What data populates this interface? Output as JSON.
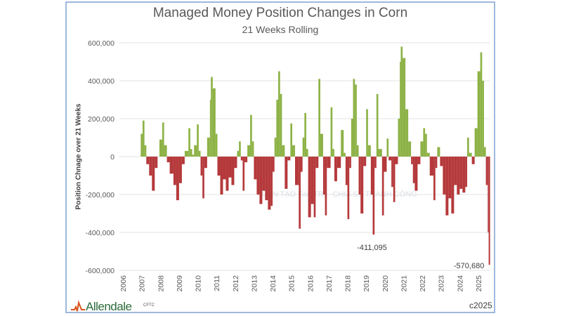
{
  "chart_data": {
    "type": "bar",
    "title": "Managed Money Position Changes in Corn",
    "subtitle": "21 Weeks Rolling",
    "xlabel": "",
    "ylabel": "Position Chnage over 21 Weeks",
    "ylim": [
      -600000,
      600000
    ],
    "yticks": [
      "600,000",
      "400,000",
      "200,000",
      "0",
      "-200,000",
      "-400,000",
      "-600,000"
    ],
    "ytick_values": [
      600000,
      400000,
      200000,
      0,
      -200000,
      -400000,
      -600000
    ],
    "xlim": [
      2006,
      2025.7
    ],
    "xticks": [
      "2006",
      "2007",
      "2008",
      "2009",
      "2010",
      "2011",
      "2012",
      "2013",
      "2014",
      "2015",
      "2016",
      "2017",
      "2018",
      "2019",
      "2020",
      "2021",
      "2022",
      "2023",
      "2024",
      "2025"
    ],
    "grid": "horizontal",
    "colors": {
      "positive": "#8db246",
      "negative": "#b5393b"
    },
    "annotations": [
      {
        "text": "-411,095",
        "x": 2019.35,
        "y": -411095
      },
      {
        "text": "-570,680",
        "x": 2025.55,
        "y": -570680
      }
    ],
    "x": [
      2006.0,
      2006.9,
      2006.95,
      2007.05,
      2007.15,
      2007.25,
      2007.4,
      2007.55,
      2007.7,
      2007.85,
      2007.95,
      2008.1,
      2008.2,
      2008.35,
      2008.5,
      2008.7,
      2008.85,
      2009.0,
      2009.15,
      2009.3,
      2009.5,
      2009.6,
      2009.7,
      2009.8,
      2009.95,
      2010.05,
      2010.15,
      2010.25,
      2010.35,
      2010.5,
      2010.65,
      2010.7,
      2010.8,
      2010.95,
      2011.05,
      2011.2,
      2011.35,
      2011.5,
      2011.65,
      2011.8,
      2011.95,
      2012.1,
      2012.2,
      2012.3,
      2012.4,
      2012.5,
      2012.65,
      2012.8,
      2012.9,
      2013.0,
      2013.15,
      2013.3,
      2013.45,
      2013.6,
      2013.75,
      2013.9,
      2014.0,
      2014.1,
      2014.2,
      2014.3,
      2014.4,
      2014.5,
      2014.65,
      2014.8,
      2014.95,
      2015.05,
      2015.2,
      2015.4,
      2015.5,
      2015.6,
      2015.7,
      2015.8,
      2015.9,
      2016.05,
      2016.2,
      2016.3,
      2016.45,
      2016.55,
      2016.7,
      2016.8,
      2016.9,
      2017.1,
      2017.2,
      2017.3,
      2017.45,
      2017.65,
      2017.8,
      2017.9,
      2018.0,
      2018.1,
      2018.2,
      2018.3,
      2018.4,
      2018.5,
      2018.6,
      2018.7,
      2018.85,
      2019.0,
      2019.1,
      2019.25,
      2019.35,
      2019.45,
      2019.55,
      2019.65,
      2019.85,
      2019.95,
      2020.1,
      2020.2,
      2020.35,
      2020.45,
      2020.55,
      2020.7,
      2020.8,
      2020.85,
      2020.95,
      2021.1,
      2021.25,
      2021.4,
      2021.5,
      2021.6,
      2021.75,
      2021.9,
      2022.05,
      2022.15,
      2022.25,
      2022.4,
      2022.6,
      2022.7,
      2022.8,
      2022.95,
      2023.1,
      2023.25,
      2023.4,
      2023.55,
      2023.7,
      2023.85,
      2024.0,
      2024.15,
      2024.3,
      2024.4,
      2024.5,
      2024.65,
      2024.8,
      2024.95,
      2025.1,
      2025.2,
      2025.3,
      2025.4,
      2025.5,
      2025.55
    ],
    "values": [
      0,
      0,
      120000,
      190000,
      60000,
      -40000,
      -100000,
      -180000,
      -60000,
      0,
      90000,
      180000,
      60000,
      -30000,
      -90000,
      -150000,
      -230000,
      -140000,
      -40000,
      30000,
      150000,
      40000,
      10000,
      60000,
      170000,
      30000,
      -100000,
      -220000,
      -60000,
      100000,
      300000,
      420000,
      360000,
      120000,
      -100000,
      -200000,
      -120000,
      -180000,
      -110000,
      -150000,
      -60000,
      30000,
      80000,
      -20000,
      -180000,
      -30000,
      60000,
      220000,
      80000,
      -120000,
      -200000,
      -250000,
      -180000,
      -230000,
      -280000,
      -260000,
      -80000,
      100000,
      300000,
      450000,
      330000,
      60000,
      -170000,
      -20000,
      175000,
      60000,
      -150000,
      -380000,
      -80000,
      100000,
      230000,
      40000,
      -320000,
      -250000,
      -320000,
      -60000,
      410000,
      120000,
      -200000,
      -310000,
      -60000,
      260000,
      40000,
      -130000,
      -60000,
      140000,
      20000,
      -150000,
      -330000,
      -60000,
      200000,
      410000,
      380000,
      60000,
      -200000,
      -300000,
      -50000,
      250000,
      60000,
      -200000,
      -411095,
      -60000,
      330000,
      40000,
      -310000,
      -80000,
      95000,
      -20000,
      -160000,
      -240000,
      -40000,
      200000,
      500000,
      580000,
      520000,
      250000,
      80000,
      -40000,
      -140000,
      -180000,
      -40000,
      80000,
      150000,
      120000,
      20000,
      -100000,
      -230000,
      -60000,
      50000,
      -50000,
      -200000,
      -310000,
      -220000,
      -300000,
      -150000,
      -200000,
      -170000,
      -190000,
      -160000,
      100000,
      20000,
      -40000,
      150000,
      450000,
      550000,
      400000,
      50000,
      -150000,
      -400000,
      -570680
    ]
  },
  "footer": {
    "logo": "Allendale",
    "source": "CFTC",
    "copyright": "c2025"
  },
  "watermark": "KIẾN TẠO GIÁ TRỊ - CHIA SẺ THÀNH CÔNG"
}
